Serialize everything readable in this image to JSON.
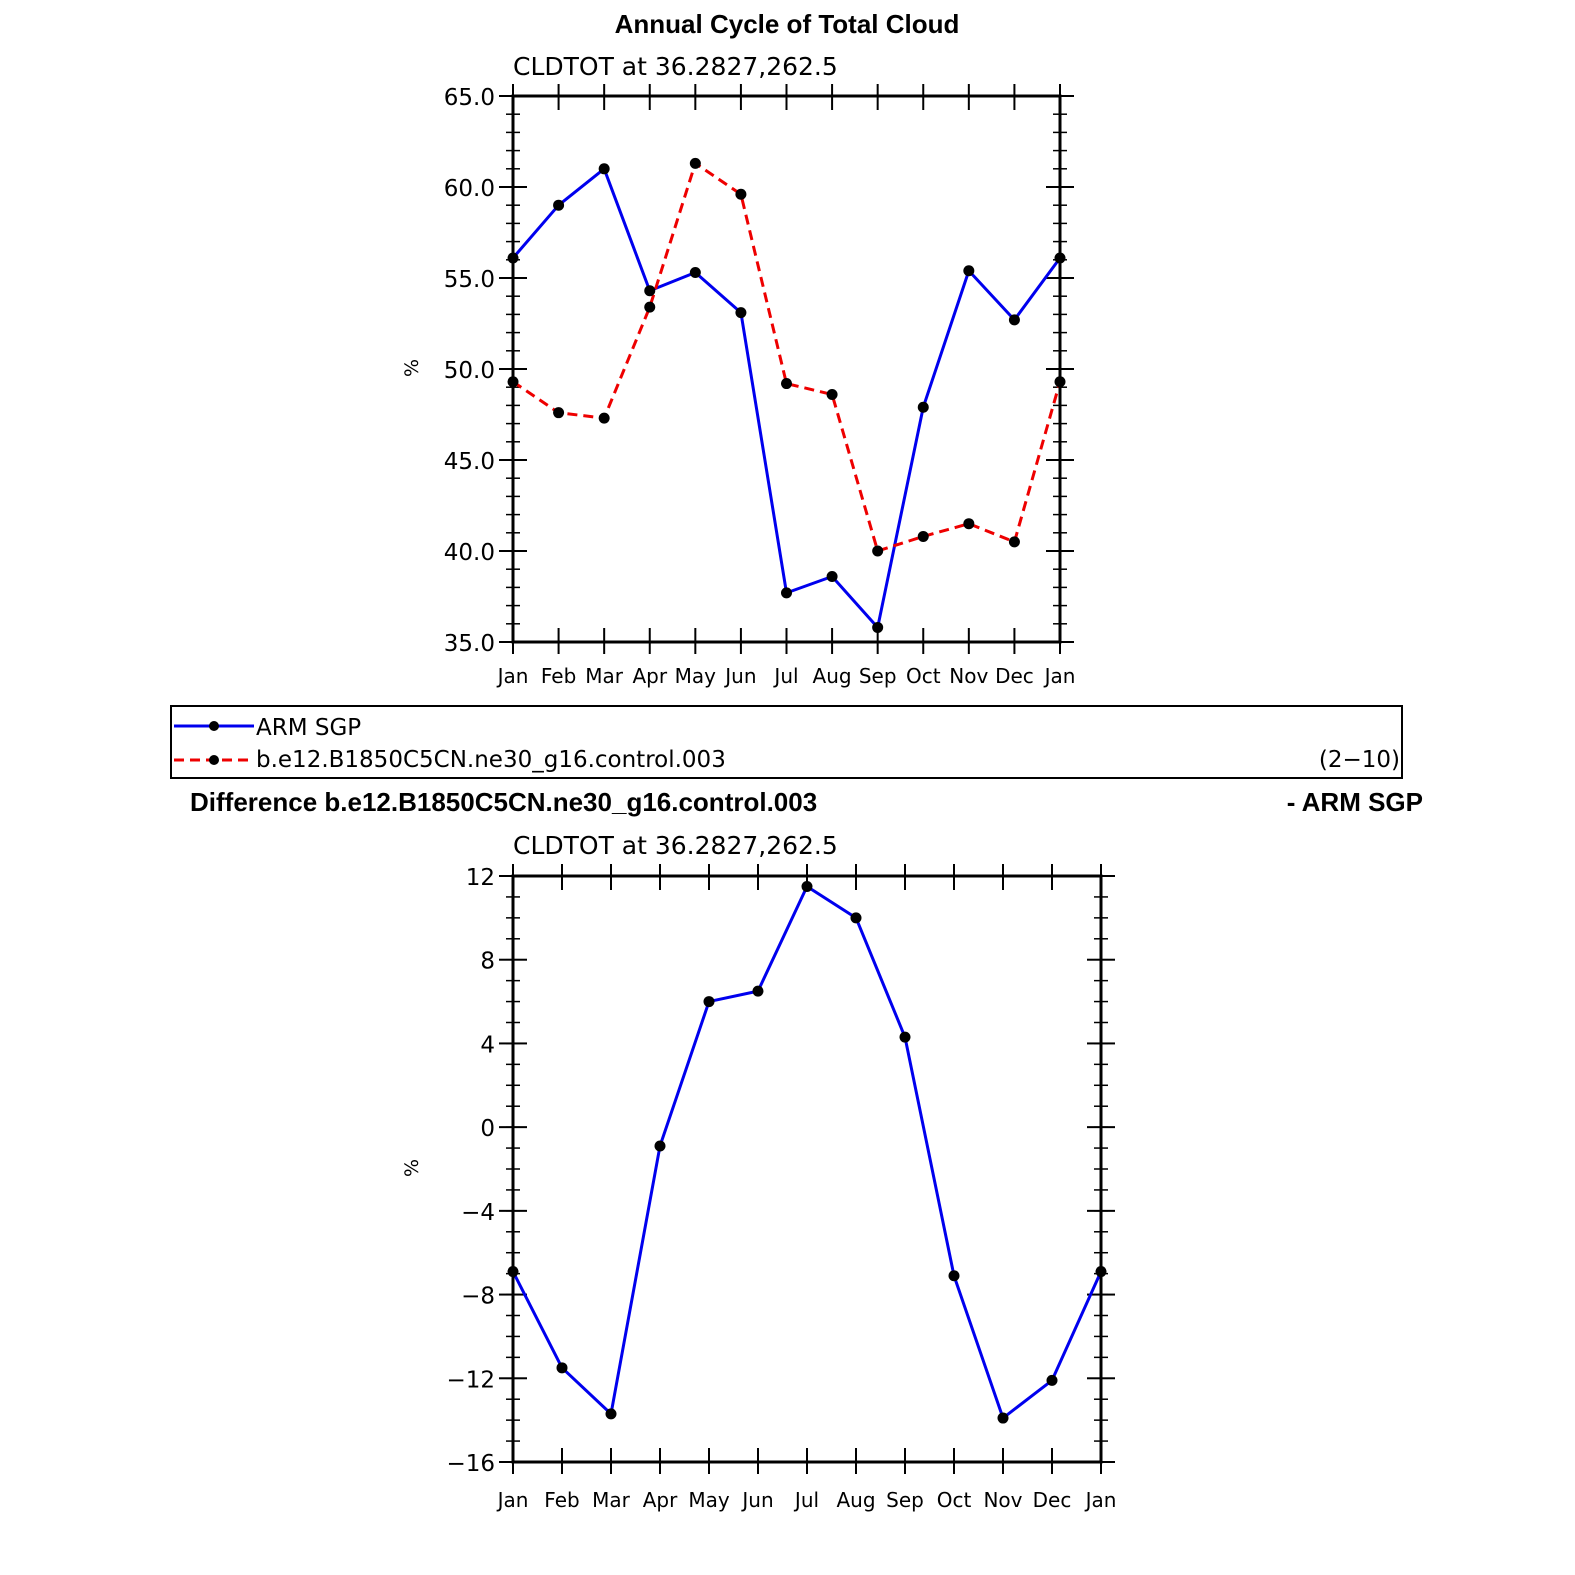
{
  "top_panel": {
    "title": "Annual Cycle of Total Cloud",
    "subtitle": "CLDTOT at 36.2827,262.5",
    "ylabel": "%",
    "ytick_labels": [
      "35.0",
      "40.0",
      "45.0",
      "50.0",
      "55.0",
      "60.0",
      "65.0"
    ],
    "xtick_labels": [
      "Jan",
      "Feb",
      "Mar",
      "Apr",
      "May",
      "Jun",
      "Jul",
      "Aug",
      "Sep",
      "Oct",
      "Nov",
      "Dec",
      "Jan"
    ]
  },
  "legend": {
    "entries": [
      "ARM SGP",
      "b.e12.B1850C5CN.ne30_g16.control.003"
    ],
    "years_note": "(2−10)"
  },
  "bottom_panel": {
    "title_left": "Difference b.e12.B1850C5CN.ne30_g16.control.003",
    "title_right": "- ARM SGP",
    "subtitle": "CLDTOT at 36.2827,262.5",
    "ylabel": "%",
    "ytick_labels": [
      "−16",
      "−12",
      "−8",
      "−4",
      "0",
      "4",
      "8",
      "12"
    ],
    "xtick_labels": [
      "Jan",
      "Feb",
      "Mar",
      "Apr",
      "May",
      "Jun",
      "Jul",
      "Aug",
      "Sep",
      "Oct",
      "Nov",
      "Dec",
      "Jan"
    ]
  },
  "colors": {
    "series_obs": "#0000ee",
    "series_model": "#ee0000",
    "marker": "#000000",
    "axis": "#000000"
  },
  "chart_data": [
    {
      "type": "line",
      "title": "Annual Cycle of Total Cloud",
      "subtitle": "CLDTOT at 36.2827,262.5",
      "xlabel": "",
      "ylabel": "%",
      "categories": [
        "Jan",
        "Feb",
        "Mar",
        "Apr",
        "May",
        "Jun",
        "Jul",
        "Aug",
        "Sep",
        "Oct",
        "Nov",
        "Dec",
        "Jan"
      ],
      "ylim": [
        35.0,
        65.0
      ],
      "yticks": [
        35,
        40,
        45,
        50,
        55,
        60,
        65
      ],
      "legend": "bottom",
      "series": [
        {
          "name": "ARM SGP",
          "line": "solid",
          "color": "#0000ee",
          "values": [
            56.1,
            59.0,
            61.0,
            54.3,
            55.3,
            53.1,
            37.7,
            38.6,
            35.8,
            47.9,
            55.4,
            52.7,
            56.1
          ]
        },
        {
          "name": "b.e12.B1850C5CN.ne30_g16.control.003",
          "line": "dashed",
          "color": "#ee0000",
          "values": [
            49.3,
            47.6,
            47.3,
            53.4,
            61.3,
            59.6,
            49.2,
            48.6,
            40.0,
            40.8,
            41.5,
            40.5,
            49.3
          ]
        }
      ]
    },
    {
      "type": "line",
      "title": "Difference b.e12.B1850C5CN.ne30_g16.control.003 - ARM SGP",
      "subtitle": "CLDTOT at 36.2827,262.5",
      "xlabel": "",
      "ylabel": "%",
      "categories": [
        "Jan",
        "Feb",
        "Mar",
        "Apr",
        "May",
        "Jun",
        "Jul",
        "Aug",
        "Sep",
        "Oct",
        "Nov",
        "Dec",
        "Jan"
      ],
      "ylim": [
        -16,
        12
      ],
      "yticks": [
        -16,
        -12,
        -8,
        -4,
        0,
        4,
        8,
        12
      ],
      "series": [
        {
          "line": "solid",
          "color": "#0000ee",
          "values": [
            -6.9,
            -11.5,
            -13.7,
            -0.9,
            6.0,
            6.5,
            11.5,
            10.0,
            4.3,
            -7.1,
            -13.9,
            -12.1,
            -6.9
          ]
        }
      ]
    }
  ]
}
